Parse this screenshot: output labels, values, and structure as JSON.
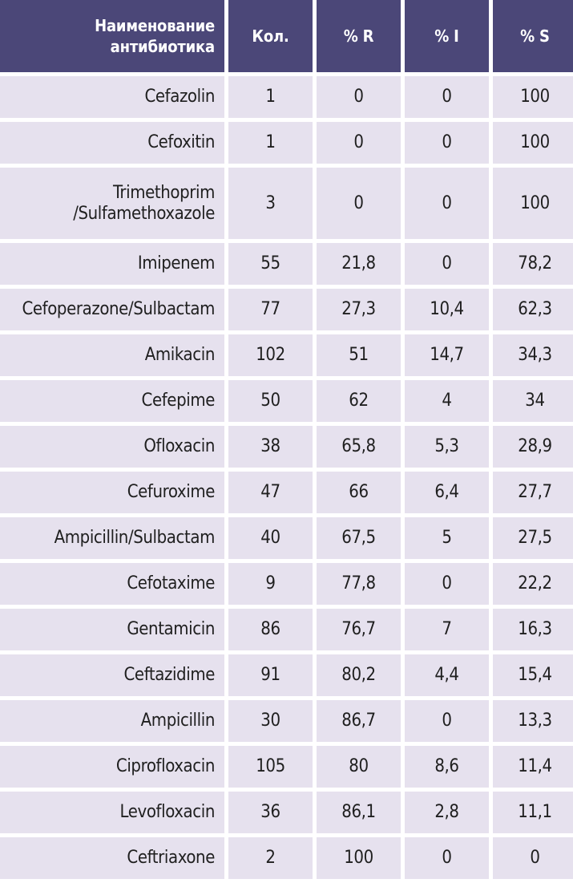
{
  "table": {
    "headers": {
      "name_line1": "Наименование",
      "name_line2": "антибиотика",
      "count": "Кол.",
      "r": "% R",
      "i": "% I",
      "s": "% S"
    },
    "rows": [
      {
        "name_line1": "Cefazolin",
        "name_line2": "",
        "count": "1",
        "r": "0",
        "i": "0",
        "s": "100"
      },
      {
        "name_line1": "Cefoxitin",
        "name_line2": "",
        "count": "1",
        "r": "0",
        "i": "0",
        "s": "100"
      },
      {
        "name_line1": "Trimethoprim",
        "name_line2": "/Sulfamethoxazole",
        "count": "3",
        "r": "0",
        "i": "0",
        "s": "100"
      },
      {
        "name_line1": "Imipenem",
        "name_line2": "",
        "count": "55",
        "r": "21,8",
        "i": "0",
        "s": "78,2"
      },
      {
        "name_line1": "Cefoperazone/Sulbactam",
        "name_line2": "",
        "count": "77",
        "r": "27,3",
        "i": "10,4",
        "s": "62,3"
      },
      {
        "name_line1": "Amikacin",
        "name_line2": "",
        "count": "102",
        "r": "51",
        "i": "14,7",
        "s": "34,3"
      },
      {
        "name_line1": "Cefepime",
        "name_line2": "",
        "count": "50",
        "r": "62",
        "i": "4",
        "s": "34"
      },
      {
        "name_line1": "Ofloxacin",
        "name_line2": "",
        "count": "38",
        "r": "65,8",
        "i": "5,3",
        "s": "28,9"
      },
      {
        "name_line1": "Cefuroxime",
        "name_line2": "",
        "count": "47",
        "r": "66",
        "i": "6,4",
        "s": "27,7"
      },
      {
        "name_line1": "Ampicillin/Sulbactam",
        "name_line2": "",
        "count": "40",
        "r": "67,5",
        "i": "5",
        "s": "27,5"
      },
      {
        "name_line1": "Cefotaxime",
        "name_line2": "",
        "count": "9",
        "r": "77,8",
        "i": "0",
        "s": "22,2"
      },
      {
        "name_line1": "Gentamicin",
        "name_line2": "",
        "count": "86",
        "r": "76,7",
        "i": "7",
        "s": "16,3"
      },
      {
        "name_line1": "Ceftazidime",
        "name_line2": "",
        "count": "91",
        "r": "80,2",
        "i": "4,4",
        "s": "15,4"
      },
      {
        "name_line1": "Ampicillin",
        "name_line2": "",
        "count": "30",
        "r": "86,7",
        "i": "0",
        "s": "13,3"
      },
      {
        "name_line1": "Ciprofloxacin",
        "name_line2": "",
        "count": "105",
        "r": "80",
        "i": "8,6",
        "s": "11,4"
      },
      {
        "name_line1": "Levofloxacin",
        "name_line2": "",
        "count": "36",
        "r": "86,1",
        "i": "2,8",
        "s": "11,1"
      },
      {
        "name_line1": "Ceftriaxone",
        "name_line2": "",
        "count": "2",
        "r": "100",
        "i": "0",
        "s": "0"
      }
    ],
    "colors": {
      "header_bg": "#4b4778",
      "header_text": "#ffffff",
      "row_bg": "#e6e1ee",
      "row_text": "#1f1f1f"
    }
  }
}
